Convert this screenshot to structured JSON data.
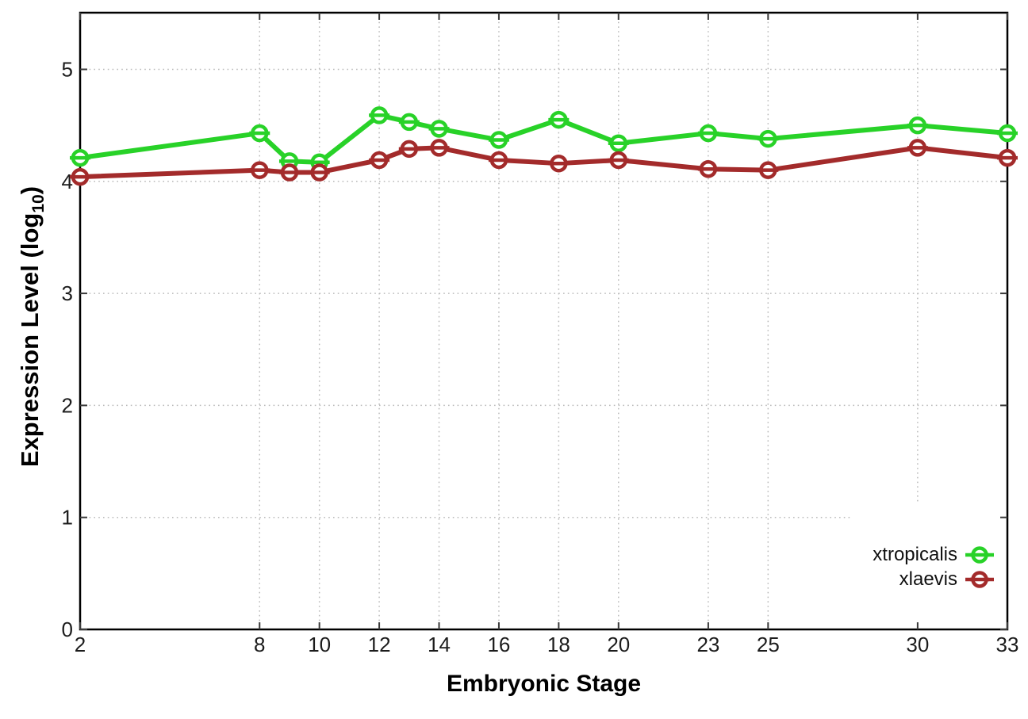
{
  "chart_data": {
    "type": "line",
    "title": "",
    "xlabel": "Embryonic Stage",
    "ylabel": "Expression Level (log10)",
    "ylabel_parts": {
      "prefix": "Expression Level (log",
      "sub": "10",
      "suffix": ")"
    },
    "x": [
      2,
      8,
      9,
      10,
      12,
      13,
      14,
      16,
      18,
      20,
      23,
      25,
      30,
      33
    ],
    "series": [
      {
        "name": "xtropicalis",
        "color": "#28d228",
        "values": [
          4.21,
          4.43,
          4.18,
          4.17,
          4.59,
          4.53,
          4.47,
          4.37,
          4.55,
          4.34,
          4.43,
          4.38,
          4.5,
          4.43
        ]
      },
      {
        "name": "xlaevis",
        "color": "#a32b2b",
        "values": [
          4.04,
          4.1,
          4.08,
          4.08,
          4.19,
          4.29,
          4.3,
          4.19,
          4.16,
          4.19,
          4.11,
          4.1,
          4.3,
          4.21
        ]
      }
    ],
    "xlim": [
      2,
      33
    ],
    "ylim": [
      0,
      5.5
    ],
    "xticks": [
      2,
      8,
      10,
      12,
      14,
      16,
      18,
      20,
      23,
      25,
      30,
      33
    ],
    "yticks": [
      0,
      1,
      2,
      3,
      4,
      5
    ],
    "grid": true,
    "legend_position": "bottom-right",
    "marker": "open-circle-with-error-dash",
    "colors": {
      "grid": "#b9b9b9",
      "axis_border": "#000000",
      "tick_mark": "#3a3a3a",
      "tick_label": "#1c1c1c",
      "legend_background": "#ffffff"
    }
  }
}
